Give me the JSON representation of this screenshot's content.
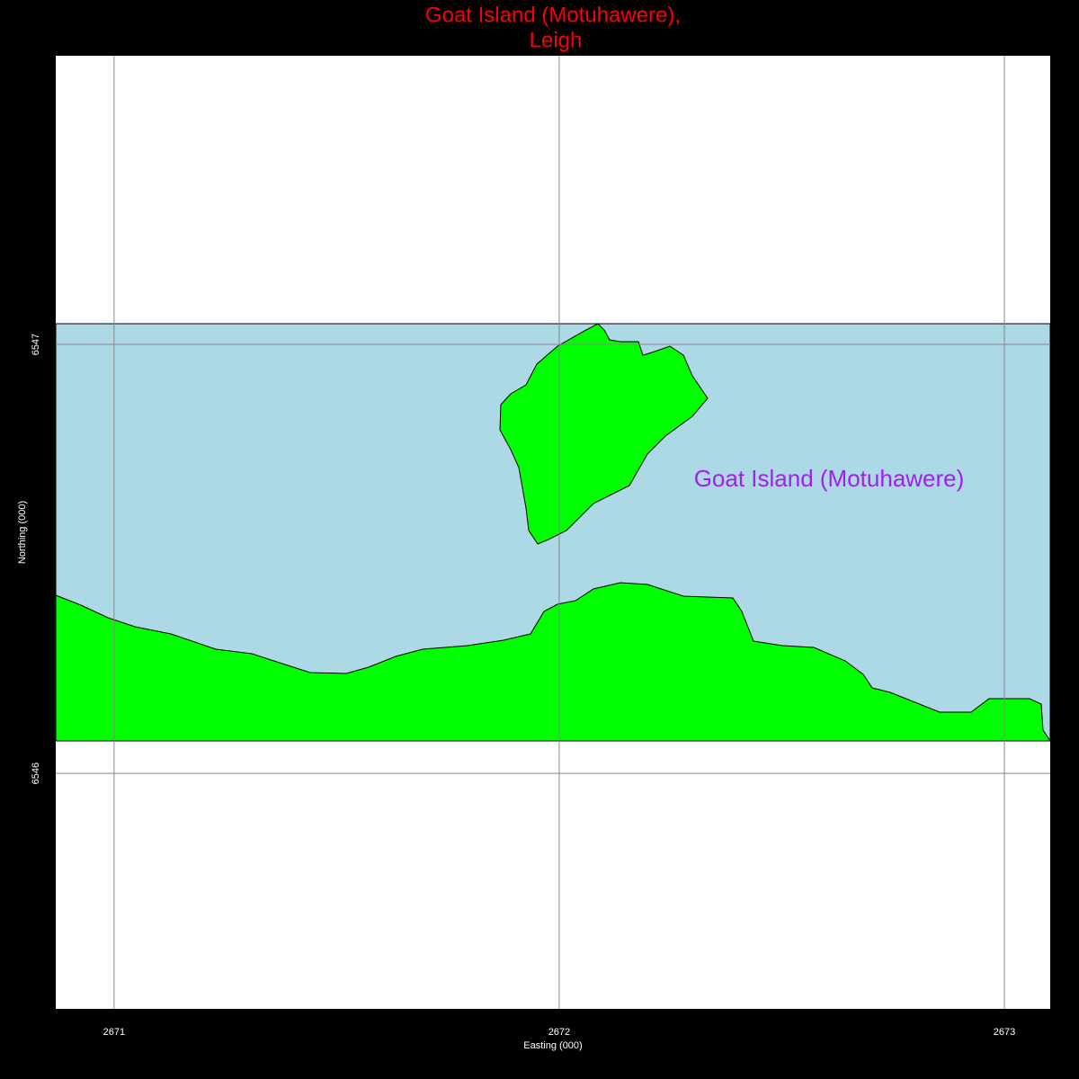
{
  "chart_data": {
    "type": "map",
    "title": [
      "Goat Island (Motuhawere),",
      "Leigh"
    ],
    "x_label": "Easting (000)",
    "y_label": "Northing (000)",
    "annotation": "Goat Island (Motuhawere)",
    "xlim": [
      2670.869,
      2673.103
    ],
    "ylim": [
      6545.451,
      6547.673
    ],
    "xticks": [
      2671,
      2672,
      2673
    ],
    "yticks": [
      6546,
      6547
    ],
    "grid": true
  }
}
